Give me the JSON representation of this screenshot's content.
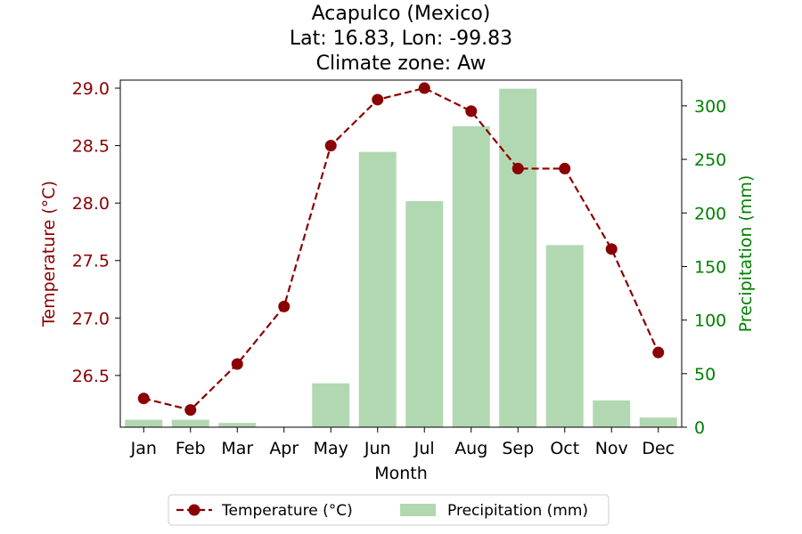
{
  "chart_data": {
    "type": "bar+line",
    "title_lines": [
      "Acapulco (Mexico)",
      "Lat: 16.83, Lon: -99.83",
      "Climate zone: Aw"
    ],
    "xlabel": "Month",
    "ylabel_left": "Temperature (°C)",
    "ylabel_right": "Precipitation (mm)",
    "categories": [
      "Jan",
      "Feb",
      "Mar",
      "Apr",
      "May",
      "Jun",
      "Jul",
      "Aug",
      "Sep",
      "Oct",
      "Nov",
      "Dec"
    ],
    "temperature": {
      "name": "Temperature (°C)",
      "values": [
        26.3,
        26.2,
        26.6,
        27.1,
        28.5,
        28.9,
        29.0,
        28.8,
        28.3,
        28.3,
        27.6,
        26.7
      ],
      "color": "#8b0000"
    },
    "precipitation": {
      "name": "Precipitation (mm)",
      "values": [
        7,
        7,
        4,
        0,
        41,
        257,
        211,
        281,
        316,
        170,
        25,
        9
      ],
      "color": "#b2d8b2"
    },
    "ylim_left": [
      26.05,
      29.07
    ],
    "ylim_right": [
      0,
      324
    ],
    "yticks_left": [
      26.5,
      27.0,
      27.5,
      28.0,
      28.5,
      29.0
    ],
    "yticks_left_labels": [
      "26.5",
      "27.0",
      "27.5",
      "28.0",
      "28.5",
      "29.0"
    ],
    "yticks_right": [
      0,
      50,
      100,
      150,
      200,
      250,
      300
    ],
    "yticks_right_labels": [
      "0",
      "50",
      "100",
      "150",
      "200",
      "250",
      "300"
    ],
    "left_axis_color": "#8b0000",
    "right_axis_color": "#008000",
    "legend": [
      "Temperature (°C)",
      "Precipitation (mm)"
    ],
    "legend_position": "bottom-center",
    "grid": false
  }
}
